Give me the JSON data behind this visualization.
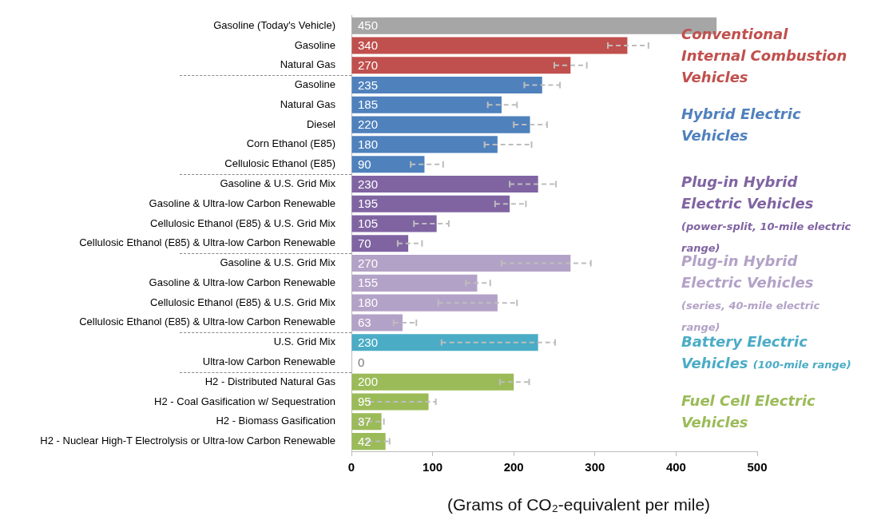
{
  "chart_data": {
    "type": "bar",
    "orientation": "horizontal",
    "categories": [
      "Gasoline (Today's Vehicle)",
      "Gasoline",
      "Natural Gas",
      "Gasoline",
      "Natural Gas",
      "Diesel",
      "Corn Ethanol (E85)",
      "Cellulosic Ethanol (E85)",
      "Gasoline & U.S. Grid Mix",
      "Gasoline & Ultra-low Carbon Renewable",
      "Cellulosic Ethanol (E85) & U.S. Grid Mix",
      "Cellulosic Ethanol (E85) & Ultra-low Carbon Renewable",
      "Gasoline & U.S. Grid Mix",
      "Gasoline & Ultra-low Carbon Renewable",
      "Cellulosic Ethanol (E85) & U.S. Grid Mix",
      "Cellulosic Ethanol (E85) & Ultra-low Carbon Renewable",
      "U.S. Grid Mix",
      "Ultra-low Carbon Renewable",
      "H2 - Distributed Natural Gas",
      "H2 - Coal Gasification w/ Sequestration",
      "H2 - Biomass Gasification",
      "H2 - Nuclear High-T Electrolysis or Ultra-low Carbon Renewable"
    ],
    "values": [
      450,
      340,
      270,
      235,
      185,
      220,
      180,
      90,
      230,
      195,
      105,
      70,
      270,
      155,
      180,
      63,
      230,
      0,
      200,
      95,
      37,
      42
    ],
    "colors": [
      "#a6a6a6",
      "#c0504d",
      "#c0504d",
      "#4f81bd",
      "#4f81bd",
      "#4f81bd",
      "#4f81bd",
      "#4f81bd",
      "#8064a2",
      "#8064a2",
      "#8064a2",
      "#8064a2",
      "#b3a2c7",
      "#b3a2c7",
      "#b3a2c7",
      "#b3a2c7",
      "#4bacc6",
      "#4bacc6",
      "#9bbb59",
      "#9bbb59",
      "#9bbb59",
      "#9bbb59"
    ],
    "errors": [
      null,
      [
        316,
        366
      ],
      [
        250,
        290
      ],
      [
        213,
        257
      ],
      [
        168,
        204
      ],
      [
        200,
        241
      ],
      [
        164,
        222
      ],
      [
        73,
        113
      ],
      [
        195,
        252
      ],
      [
        177,
        215
      ],
      [
        77,
        120
      ],
      [
        57,
        87
      ],
      [
        185,
        295
      ],
      [
        141,
        171
      ],
      [
        107,
        204
      ],
      [
        52,
        80
      ],
      [
        111,
        251
      ],
      null,
      [
        183,
        219
      ],
      [
        22,
        104
      ],
      [
        10,
        40
      ],
      [
        20,
        47
      ]
    ],
    "data_labels": true,
    "xlim": [
      0,
      500
    ],
    "xticks": [
      0,
      100,
      200,
      300,
      400,
      500
    ],
    "xlabel": "(Grams of CO₂-equivalent per mile)",
    "annotations": [
      "Conventional Internal Combustion Vehicles",
      "Hybrid Electric Vehicles",
      "Plug-in Hybrid Electric Vehicles (power-split, 10-mile electric range)",
      "Plug-in Hybrid Electric Vehicles (series, 40-mile electric range)",
      "Battery Electric Vehicles (100-mile range)",
      "Fuel Cell Electric Vehicles"
    ],
    "grid": false,
    "legend": false
  }
}
